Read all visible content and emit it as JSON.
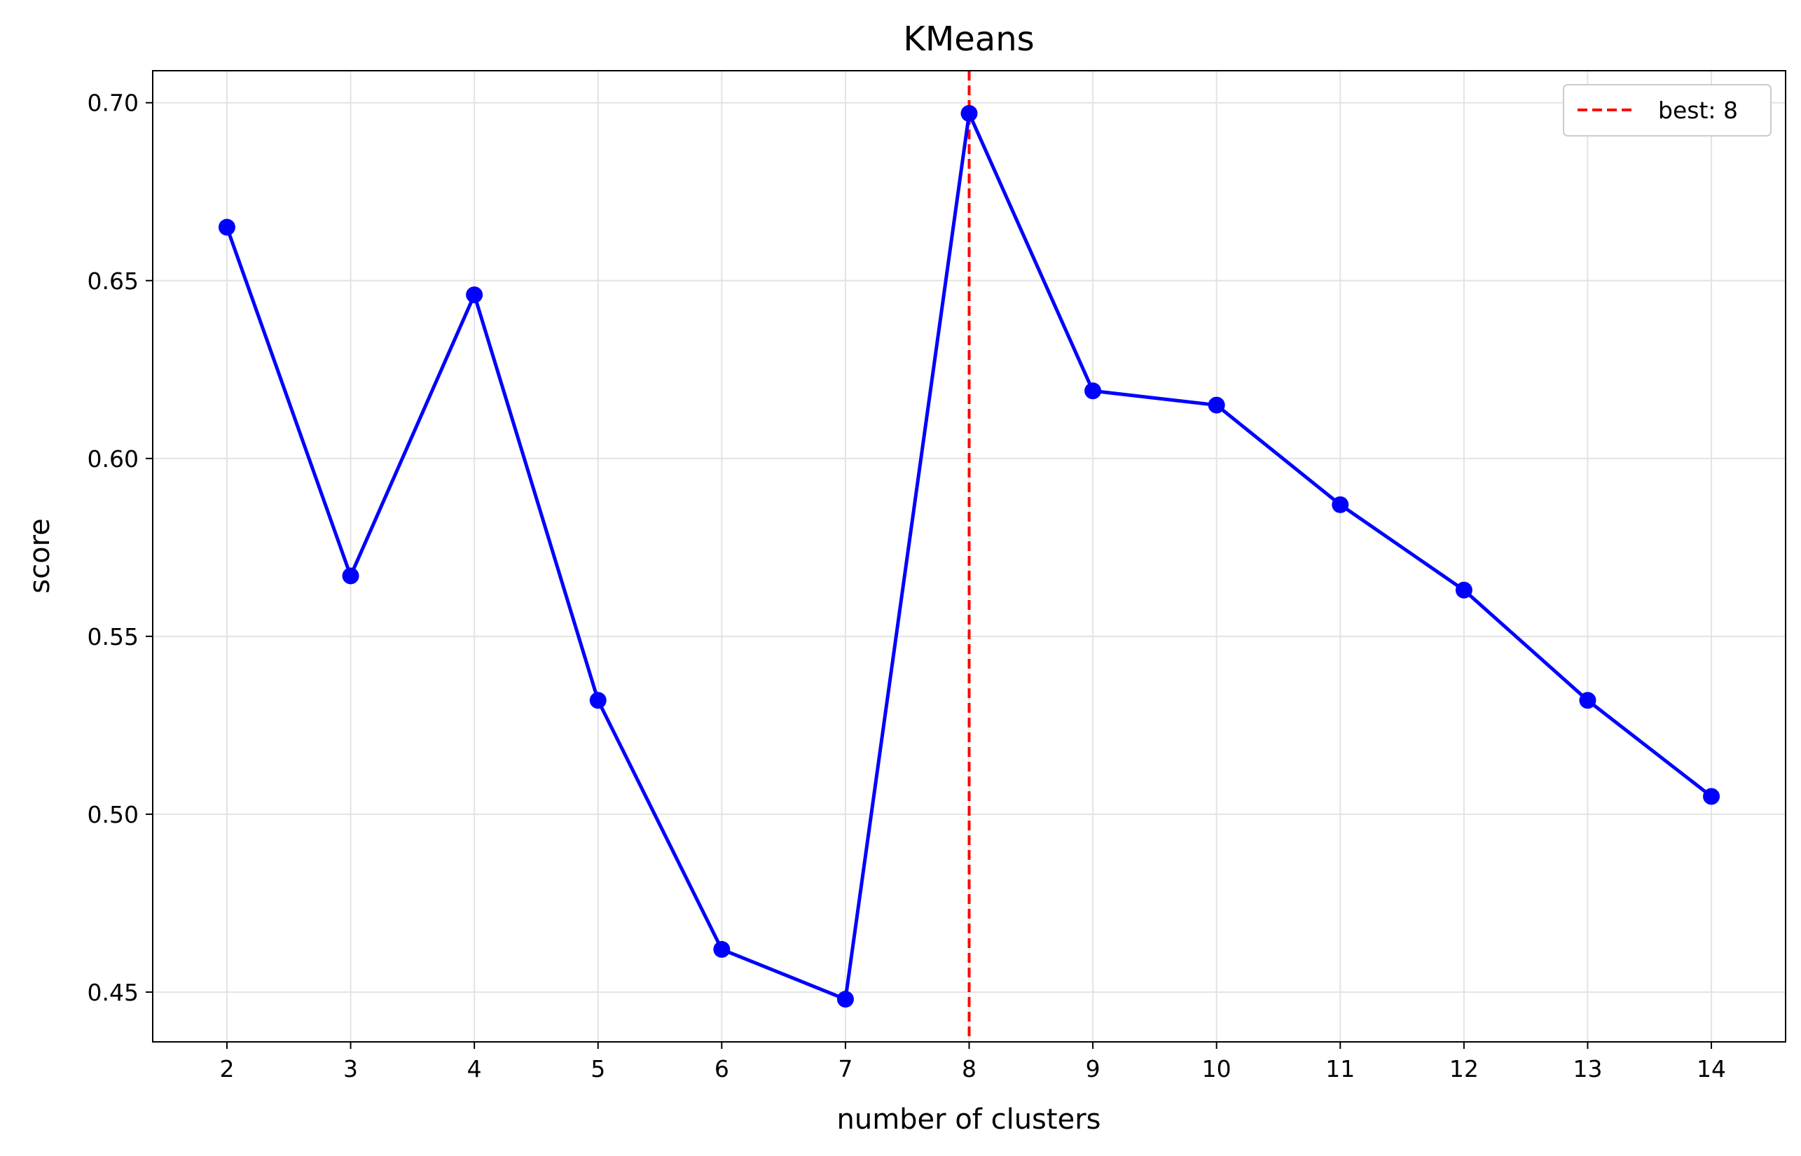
{
  "chart_data": {
    "type": "line",
    "title": "KMeans",
    "xlabel": "number of clusters",
    "ylabel": "score",
    "x": [
      2,
      3,
      4,
      5,
      6,
      7,
      8,
      9,
      10,
      11,
      12,
      13,
      14
    ],
    "series": [
      {
        "values": [
          0.665,
          0.567,
          0.646,
          0.532,
          0.462,
          0.448,
          0.697,
          0.619,
          0.615,
          0.587,
          0.563,
          0.532,
          0.505
        ],
        "color": "#0000ff",
        "marker": "circle"
      }
    ],
    "xlim": [
      1.4,
      14.6
    ],
    "ylim": [
      0.436,
      0.709
    ],
    "yticks": [
      "0.45",
      "0.50",
      "0.55",
      "0.60",
      "0.65",
      "0.70"
    ],
    "xticks": [
      "2",
      "3",
      "4",
      "5",
      "6",
      "7",
      "8",
      "9",
      "10",
      "11",
      "12",
      "13",
      "14"
    ],
    "reference_line": {
      "x": 8,
      "style": "dashed",
      "color": "#ff0000",
      "label": "best: 8"
    },
    "grid": true,
    "legend": {
      "position": "top-right",
      "entries": [
        "best: 8"
      ]
    }
  }
}
